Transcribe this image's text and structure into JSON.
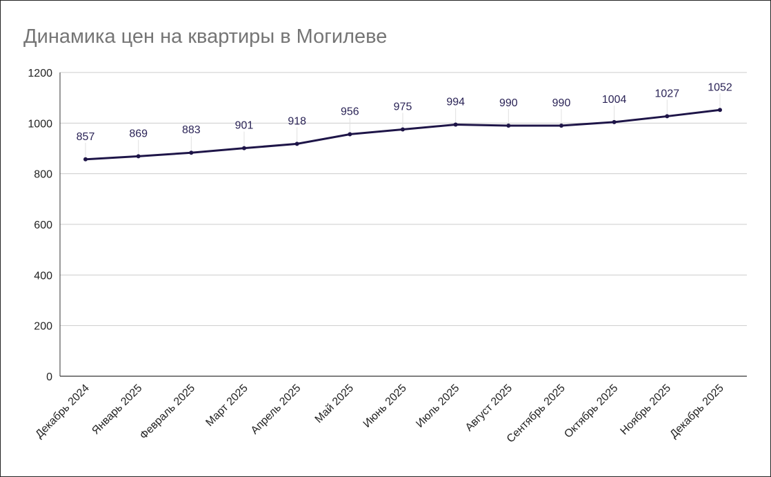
{
  "chart_data": {
    "type": "line",
    "title": "Динамика цен на квартиры в Могилеве",
    "categories": [
      "Декабрь 2024",
      "Январь 2025",
      "Февраль 2025",
      "Март 2025",
      "Апрель 2025",
      "Май 2025",
      "Июнь 2025",
      "Июль 2025",
      "Август 2025",
      "Сентябрь 2025",
      "Октябрь 2025",
      "Ноябрь 2025",
      "Декабрь 2025"
    ],
    "values": [
      857,
      869,
      883,
      901,
      918,
      956,
      975,
      994,
      990,
      990,
      1004,
      1027,
      1052
    ],
    "ylim": [
      0,
      1200
    ],
    "yticks": [
      0,
      200,
      400,
      600,
      800,
      1000,
      1200
    ],
    "grid": true,
    "data_labels": true,
    "line_color": "#1e1548",
    "xlabel": "",
    "ylabel": ""
  }
}
